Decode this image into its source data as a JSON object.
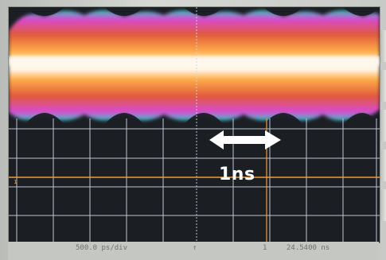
{
  "screen": {
    "annotation": "1ns",
    "left_marker": "1"
  },
  "status": {
    "timebase": "500.0 ps/div",
    "trigger_marker": "↑",
    "cursor_marker": "1",
    "cursor_value": "24.5400 ns"
  },
  "colors": {
    "grid": "#cfd8e6",
    "cursor": "#f29a3a",
    "arrow": "#ffffff",
    "eye_core": "#fff6ea",
    "eye_mid": "#ffd36b",
    "eye_outer": "#e05a3b",
    "eye_edge": "#d84ad1",
    "eye_fringe": "#2ec4c0"
  }
}
